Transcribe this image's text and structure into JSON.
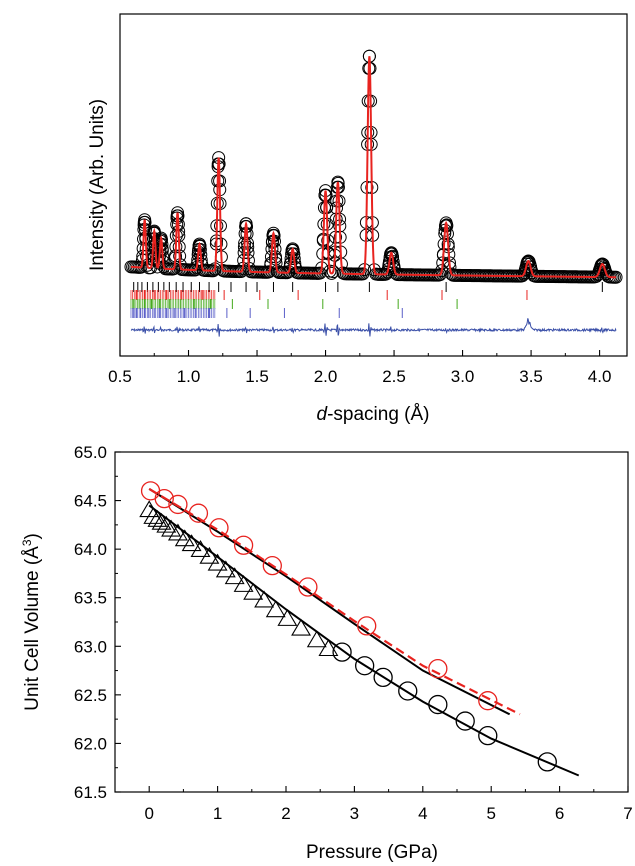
{
  "chart_data": [
    {
      "type": "scatter",
      "title": "",
      "xlabel_italic": "d",
      "xlabel_rest": "-spacing (Å)",
      "ylabel": "Intensity (Arb. Units)",
      "xlim": [
        0.5,
        4.2
      ],
      "x_ticks": [
        "0.5",
        "1.0",
        "1.5",
        "2.0",
        "2.5",
        "3.0",
        "3.5",
        "4.0"
      ],
      "y_ticks": [],
      "series": [
        {
          "role": "observed",
          "marker": "open-circle",
          "color": "#000000",
          "peaks": [
            {
              "x": 0.68,
              "y": 0.22
            },
            {
              "x": 0.75,
              "y": 0.17
            },
            {
              "x": 0.8,
              "y": 0.14
            },
            {
              "x": 0.92,
              "y": 0.26
            },
            {
              "x": 1.08,
              "y": 0.12
            },
            {
              "x": 1.22,
              "y": 0.52
            },
            {
              "x": 1.42,
              "y": 0.22
            },
            {
              "x": 1.62,
              "y": 0.18
            },
            {
              "x": 1.76,
              "y": 0.11
            },
            {
              "x": 2.0,
              "y": 0.38
            },
            {
              "x": 2.09,
              "y": 0.42
            },
            {
              "x": 2.32,
              "y": 1.0
            },
            {
              "x": 2.48,
              "y": 0.1
            },
            {
              "x": 2.88,
              "y": 0.24
            },
            {
              "x": 3.48,
              "y": 0.07
            },
            {
              "x": 4.02,
              "y": 0.06
            }
          ]
        },
        {
          "role": "calculated",
          "line": "solid",
          "color": "#e8231f"
        },
        {
          "role": "difference",
          "line": "solid",
          "color": "#3a4fa8"
        }
      ],
      "reflection_ticks": [
        {
          "color": "#000000",
          "positions": [
            0.6,
            0.63,
            0.66,
            0.7,
            0.74,
            0.78,
            0.82,
            0.86,
            0.91,
            0.96,
            1.02,
            1.08,
            1.15,
            1.22,
            1.31,
            1.42,
            1.5,
            1.62,
            1.76,
            2.0,
            2.09,
            2.32,
            2.88,
            4.02
          ]
        },
        {
          "color": "#e8231f",
          "positions": [
            0.62,
            0.68,
            0.75,
            0.84,
            0.95,
            1.1,
            1.26,
            1.52,
            1.8,
            2.45,
            2.85,
            3.47
          ]
        },
        {
          "color": "#43a81b",
          "positions": [
            0.6,
            0.64,
            0.68,
            0.73,
            0.79,
            0.86,
            0.94,
            1.04,
            1.16,
            1.32,
            1.58,
            1.98,
            2.53,
            2.96
          ]
        },
        {
          "color": "#5a5fc8",
          "positions": [
            0.6,
            0.62,
            0.65,
            0.68,
            0.71,
            0.75,
            0.79,
            0.84,
            0.9,
            0.97,
            1.05,
            1.15,
            1.28,
            1.45,
            1.7,
            2.1,
            2.56
          ]
        }
      ]
    },
    {
      "type": "scatter",
      "title": "",
      "xlabel": "Pressure (GPa)",
      "ylabel_prefix": "Unit Cell Volume (Å",
      "ylabel_sup": "3",
      "ylabel_suffix": ")",
      "xlim": [
        -0.5,
        7
      ],
      "ylim": [
        61.5,
        65.0
      ],
      "x_ticks": [
        "0",
        "1",
        "2",
        "3",
        "4",
        "5",
        "6",
        "7"
      ],
      "y_ticks": [
        "61.5",
        "62.0",
        "62.5",
        "63.0",
        "63.5",
        "64.0",
        "64.5",
        "65.0"
      ],
      "series": [
        {
          "marker": "open-circle",
          "color": "#e8231f",
          "points": [
            [
              0.02,
              64.6
            ],
            [
              0.22,
              64.52
            ],
            [
              0.42,
              64.46
            ],
            [
              0.72,
              64.37
            ],
            [
              1.02,
              64.22
            ],
            [
              1.38,
              64.04
            ],
            [
              1.8,
              63.83
            ],
            [
              2.32,
              63.61
            ],
            [
              3.18,
              63.21
            ],
            [
              4.22,
              62.77
            ],
            [
              4.95,
              62.44
            ]
          ]
        },
        {
          "marker": "open-triangle",
          "color": "#000000",
          "points": [
            [
              0.0,
              64.4
            ],
            [
              0.06,
              64.33
            ],
            [
              0.12,
              64.3
            ],
            [
              0.18,
              64.27
            ],
            [
              0.25,
              64.24
            ],
            [
              0.32,
              64.2
            ],
            [
              0.42,
              64.16
            ],
            [
              0.52,
              64.1
            ],
            [
              0.62,
              64.05
            ],
            [
              0.75,
              63.99
            ],
            [
              0.88,
              63.92
            ],
            [
              1.0,
              63.85
            ],
            [
              1.12,
              63.78
            ],
            [
              1.25,
              63.71
            ],
            [
              1.38,
              63.63
            ],
            [
              1.52,
              63.55
            ],
            [
              1.68,
              63.47
            ],
            [
              1.85,
              63.37
            ],
            [
              2.02,
              63.28
            ],
            [
              2.22,
              63.18
            ],
            [
              2.45,
              63.06
            ],
            [
              2.62,
              62.97
            ]
          ]
        },
        {
          "marker": "open-circle",
          "color": "#000000",
          "points": [
            [
              2.82,
              62.94
            ],
            [
              3.15,
              62.8
            ],
            [
              3.42,
              62.68
            ],
            [
              3.78,
              62.54
            ],
            [
              4.22,
              62.4
            ],
            [
              4.62,
              62.23
            ],
            [
              4.95,
              62.08
            ],
            [
              5.82,
              61.81
            ]
          ]
        }
      ],
      "fits": [
        {
          "color": "#000000",
          "style": "solid",
          "points": [
            [
              0.0,
              64.62
            ],
            [
              1.0,
              64.18
            ],
            [
              2.0,
              63.72
            ],
            [
              3.0,
              63.23
            ],
            [
              4.0,
              62.75
            ],
            [
              5.27,
              62.3
            ]
          ]
        },
        {
          "color": "#e8231f",
          "style": "dashed",
          "points": [
            [
              0.0,
              64.62
            ],
            [
              1.0,
              64.2
            ],
            [
              2.0,
              63.74
            ],
            [
              3.0,
              63.26
            ],
            [
              4.0,
              62.8
            ],
            [
              5.42,
              62.3
            ]
          ]
        },
        {
          "color": "#000000",
          "style": "solid",
          "points": [
            [
              0.0,
              64.45
            ],
            [
              1.0,
              63.92
            ],
            [
              2.0,
              63.38
            ],
            [
              3.0,
              62.87
            ],
            [
              4.0,
              62.43
            ],
            [
              5.0,
              62.05
            ],
            [
              6.28,
              61.67
            ]
          ]
        }
      ]
    }
  ]
}
